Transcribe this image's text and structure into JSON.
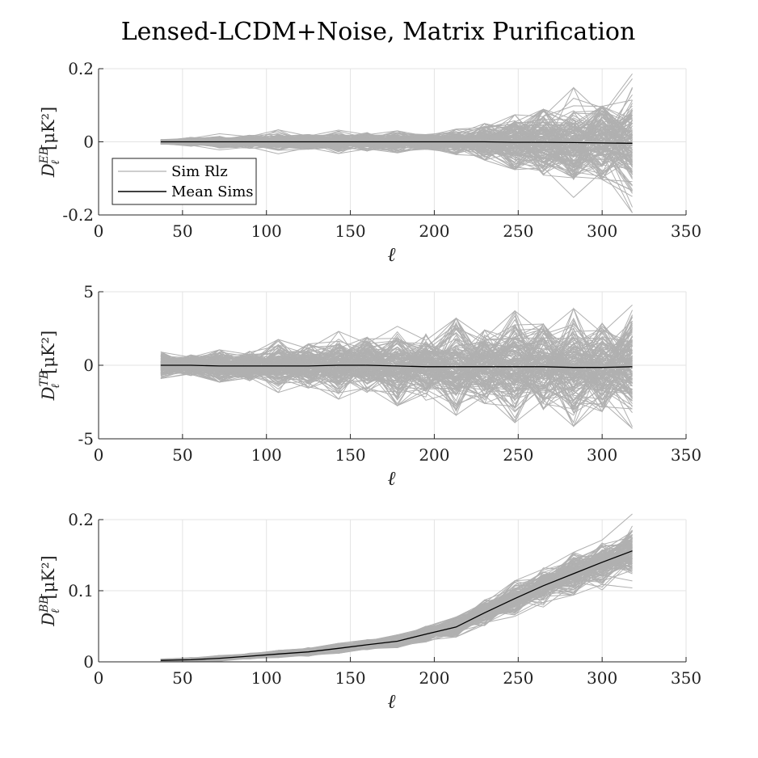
{
  "title": "Lensed-LCDM+Noise, Matrix Purification",
  "legend": {
    "location": "lower-left of top panel",
    "items": [
      {
        "label": "Sim Rlz",
        "color": "#b0b0b0"
      },
      {
        "label": "Mean Sims",
        "color": "#000000"
      }
    ]
  },
  "colors": {
    "sims": "#b0b0b0",
    "mean": "#000000",
    "grid": "#e3e3e3"
  },
  "chart_data": [
    {
      "type": "line",
      "id": "EB",
      "xlabel": "ℓ",
      "ylabel": {
        "base": "D",
        "sub": "ℓ",
        "sup": "EB",
        "unit": "[μK²]"
      },
      "xlim": [
        0,
        350
      ],
      "ylim": [
        -0.2,
        0.2
      ],
      "xticks": [
        0,
        50,
        100,
        150,
        200,
        250,
        300,
        350
      ],
      "yticks": [
        -0.2,
        0,
        0.2
      ],
      "ytick_labels": [
        "-0.2",
        "0",
        "0.2"
      ],
      "grid": true,
      "x": [
        37,
        55,
        72,
        90,
        107,
        125,
        143,
        160,
        178,
        195,
        213,
        230,
        248,
        265,
        283,
        300,
        318
      ],
      "mean": [
        0.0,
        0.0,
        0.0,
        0.0,
        0.0,
        0.0,
        0.0,
        0.0,
        0.0,
        0.0,
        0.0,
        0.0,
        -0.001,
        -0.001,
        -0.002,
        -0.003,
        -0.004
      ],
      "sim_spread": [
        0.004,
        0.006,
        0.008,
        0.01,
        0.012,
        0.012,
        0.014,
        0.015,
        0.016,
        0.016,
        0.018,
        0.03,
        0.04,
        0.05,
        0.065,
        0.07,
        0.08
      ],
      "sim_extreme": [
        0.006,
        0.012,
        0.022,
        0.018,
        0.033,
        0.02,
        0.032,
        0.025,
        0.03,
        0.02,
        0.035,
        0.05,
        0.075,
        0.09,
        0.15,
        0.1,
        0.19
      ]
    },
    {
      "type": "line",
      "id": "TB",
      "xlabel": "ℓ",
      "ylabel": {
        "base": "D",
        "sub": "ℓ",
        "sup": "TB",
        "unit": "[μK²]"
      },
      "xlim": [
        0,
        350
      ],
      "ylim": [
        -5,
        5
      ],
      "xticks": [
        0,
        50,
        100,
        150,
        200,
        250,
        300,
        350
      ],
      "yticks": [
        -5,
        0,
        5
      ],
      "ytick_labels": [
        "-5",
        "0",
        "5"
      ],
      "grid": true,
      "x": [
        37,
        55,
        72,
        90,
        107,
        125,
        143,
        160,
        178,
        195,
        213,
        230,
        248,
        265,
        283,
        300,
        318
      ],
      "mean": [
        0.0,
        0.0,
        -0.05,
        -0.05,
        -0.05,
        -0.05,
        0.0,
        0.0,
        -0.05,
        -0.1,
        -0.1,
        -0.1,
        -0.1,
        -0.1,
        -0.15,
        -0.15,
        -0.1
      ],
      "sim_spread": [
        0.5,
        0.45,
        0.6,
        0.55,
        0.8,
        0.8,
        1.1,
        1.1,
        1.3,
        1.2,
        1.6,
        1.5,
        1.8,
        1.7,
        1.8,
        1.7,
        1.9
      ],
      "sim_extreme": [
        0.9,
        0.7,
        1.1,
        1.0,
        1.8,
        1.5,
        2.3,
        1.9,
        2.7,
        2.3,
        3.3,
        2.5,
        3.8,
        2.9,
        4.0,
        3.0,
        4.2
      ]
    },
    {
      "type": "line",
      "id": "BB",
      "xlabel": "ℓ",
      "ylabel": {
        "base": "D",
        "sub": "ℓ",
        "sup": "BB",
        "unit": "[μK²]"
      },
      "xlim": [
        0,
        350
      ],
      "ylim": [
        0,
        0.2
      ],
      "xticks": [
        0,
        50,
        100,
        150,
        200,
        250,
        300,
        350
      ],
      "yticks": [
        0,
        0.1,
        0.2
      ],
      "ytick_labels": [
        "0",
        "0.1",
        "0.2"
      ],
      "grid": true,
      "x": [
        37,
        55,
        72,
        90,
        107,
        125,
        143,
        160,
        178,
        195,
        213,
        230,
        248,
        265,
        283,
        300,
        318
      ],
      "mean": [
        0.002,
        0.003,
        0.005,
        0.008,
        0.011,
        0.014,
        0.019,
        0.024,
        0.029,
        0.039,
        0.049,
        0.069,
        0.089,
        0.107,
        0.124,
        0.14,
        0.156
      ],
      "sim_spread": [
        0.001,
        0.0015,
        0.002,
        0.002,
        0.003,
        0.003,
        0.004,
        0.004,
        0.005,
        0.006,
        0.008,
        0.01,
        0.012,
        0.013,
        0.015,
        0.016,
        0.018
      ],
      "sim_extreme": [
        0.002,
        0.003,
        0.004,
        0.004,
        0.005,
        0.006,
        0.007,
        0.007,
        0.009,
        0.011,
        0.014,
        0.018,
        0.025,
        0.03,
        0.03,
        0.04,
        0.052
      ]
    }
  ]
}
